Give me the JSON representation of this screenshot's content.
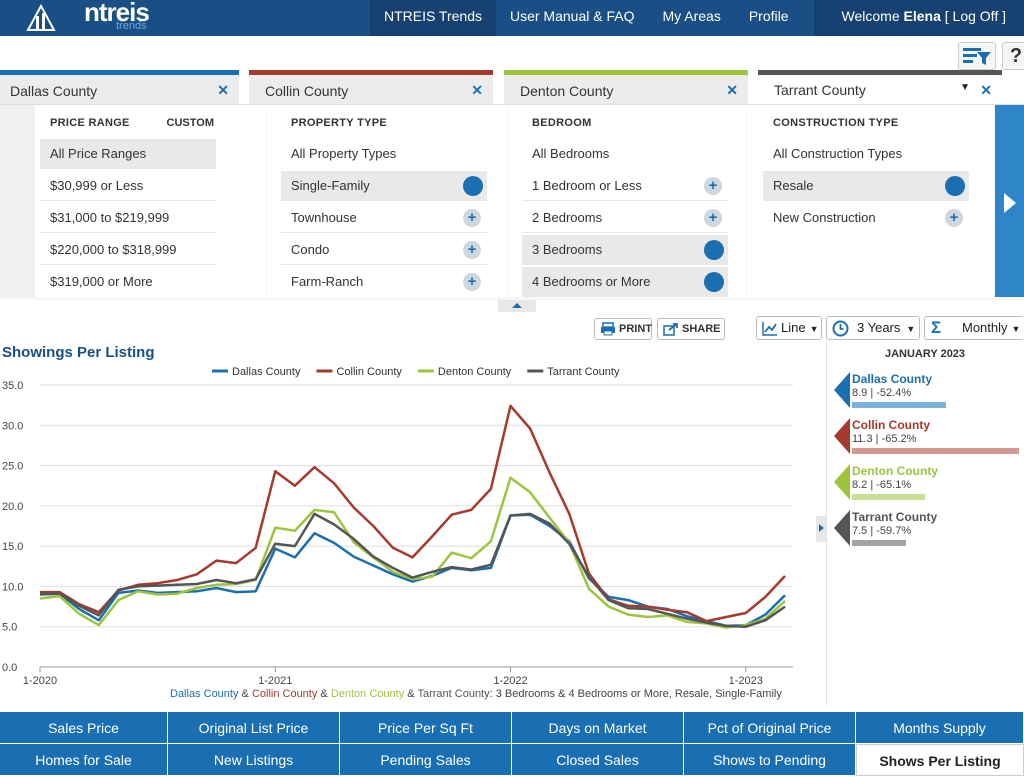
{
  "brand": {
    "logo_text": "ntreis",
    "logo_sub": "trends"
  },
  "nav": {
    "items": [
      "NTREIS Trends",
      "User Manual & FAQ",
      "My Areas",
      "Profile"
    ],
    "welcome_prefix": "Welcome",
    "user": "Elena",
    "logoff": "[ Log Off ]"
  },
  "toolbar": {
    "help_label": "?"
  },
  "tabs": [
    {
      "label": "Dallas County",
      "color": "#1a6fb3"
    },
    {
      "label": "Collin County",
      "color": "#a63a2c"
    },
    {
      "label": "Denton County",
      "color": "#9bc53d"
    },
    {
      "label": "Tarrant County",
      "color": "#555555"
    }
  ],
  "filters": {
    "price": {
      "header": "PRICE RANGE",
      "custom": "CUSTOM",
      "options": [
        "All Price Ranges",
        "$30,999 or Less",
        "$31,000 to $219,999",
        "$220,000 to $318,999",
        "$319,000 or More"
      ]
    },
    "property": {
      "header": "PROPERTY TYPE",
      "options": [
        "All Property Types",
        "Single-Family",
        "Townhouse",
        "Condo",
        "Farm-Ranch"
      ]
    },
    "bedroom": {
      "header": "BEDROOM",
      "options": [
        "All Bedrooms",
        "1 Bedroom or Less",
        "2 Bedrooms",
        "3 Bedrooms",
        "4 Bedrooms or More"
      ]
    },
    "construction": {
      "header": "CONSTRUCTION TYPE",
      "options": [
        "All Construction Types",
        "Resale",
        "New Construction"
      ]
    }
  },
  "chart_toolbar": {
    "print": "PRINT",
    "share": "SHARE",
    "type": "Line",
    "range": "3 Years",
    "period": "Monthly"
  },
  "chart_data": {
    "type": "line",
    "title": "Showings Per Listing",
    "ylim": [
      0,
      35
    ],
    "yticks": [
      "0.0",
      "5.0",
      "10.0",
      "15.0",
      "20.0",
      "25.0",
      "30.0",
      "35.0"
    ],
    "xticks": [
      "1-2020",
      "1-2021",
      "1-2022",
      "1-2023"
    ],
    "grid": true,
    "legend": "top",
    "caption": "Dallas County & Collin County & Denton County & Tarrant County: 3 Bedrooms & 4 Bedrooms or More, Resale, Single-Family",
    "series": [
      {
        "name": "Dallas County",
        "color": "#1a6fb3",
        "values": [
          9.0,
          9.1,
          7.2,
          5.8,
          9.2,
          9.5,
          9.2,
          9.3,
          9.4,
          9.8,
          9.3,
          9.4,
          14.7,
          13.6,
          16.6,
          15.4,
          13.7,
          12.6,
          11.5,
          10.6,
          11.3,
          12.3,
          12.0,
          12.3,
          18.8,
          18.9,
          17.5,
          15.6,
          11.0,
          8.7,
          8.3,
          7.5,
          7.2,
          6.3,
          5.7,
          5.1,
          5.2,
          6.5,
          8.9
        ]
      },
      {
        "name": "Collin County",
        "color": "#a63a2c",
        "values": [
          9.3,
          9.3,
          7.8,
          6.8,
          9.5,
          10.2,
          10.4,
          10.8,
          11.5,
          13.2,
          12.9,
          14.8,
          24.3,
          22.5,
          24.8,
          22.8,
          19.8,
          17.5,
          14.8,
          13.6,
          16.2,
          18.9,
          19.5,
          22.1,
          32.4,
          29.6,
          24.1,
          19.0,
          11.6,
          8.4,
          7.6,
          7.5,
          7.1,
          6.8,
          5.7,
          6.2,
          6.7,
          8.7,
          11.3
        ]
      },
      {
        "name": "Denton County",
        "color": "#9bc53d",
        "values": [
          8.5,
          8.8,
          6.6,
          5.2,
          8.3,
          9.4,
          9.0,
          9.1,
          9.8,
          10.2,
          10.3,
          10.8,
          17.3,
          16.9,
          19.5,
          19.2,
          15.5,
          13.6,
          11.8,
          10.9,
          11.2,
          14.2,
          13.5,
          15.6,
          23.5,
          21.7,
          18.5,
          15.4,
          9.7,
          7.5,
          6.5,
          6.2,
          6.4,
          5.6,
          5.4,
          4.9,
          5.2,
          6.0,
          8.2
        ]
      },
      {
        "name": "Tarrant County",
        "color": "#555555",
        "values": [
          9.1,
          9.1,
          7.6,
          6.4,
          9.6,
          10.0,
          10.1,
          10.2,
          10.3,
          10.8,
          10.4,
          10.9,
          15.3,
          15.0,
          19.0,
          17.7,
          15.9,
          13.7,
          12.3,
          11.1,
          11.8,
          12.4,
          12.1,
          12.7,
          18.8,
          19.0,
          17.8,
          15.3,
          11.2,
          8.3,
          7.3,
          7.2,
          6.6,
          6.0,
          5.5,
          5.1,
          5.0,
          5.8,
          7.5
        ]
      }
    ]
  },
  "side_panel": {
    "date": "JANUARY 2023",
    "entries": [
      {
        "name": "Dallas County",
        "value": "8.9 | -52.4%",
        "color": "#1a6fb3",
        "bar_color": "#7db3db",
        "fraction": 0.55
      },
      {
        "name": "Collin County",
        "value": "11.3 | -65.2%",
        "color": "#a63a2c",
        "bar_color": "#d49a90",
        "fraction": 0.98
      },
      {
        "name": "Denton County",
        "value": "8.2 | -65.1%",
        "color": "#9bc53d",
        "bar_color": "#c8df96",
        "fraction": 0.43
      },
      {
        "name": "Tarrant County",
        "value": "7.5 | -59.7%",
        "color": "#555555",
        "bar_color": "#a3a3a3",
        "fraction": 0.32
      }
    ]
  },
  "bottom_nav": {
    "row1": [
      "Sales Price",
      "Original List Price",
      "Price Per Sq Ft",
      "Days on Market",
      "Pct of Original Price",
      "Months Supply"
    ],
    "row2": [
      "Homes for Sale",
      "New Listings",
      "Pending Sales",
      "Closed Sales",
      "Shows to Pending",
      "Shows Per Listing"
    ]
  }
}
